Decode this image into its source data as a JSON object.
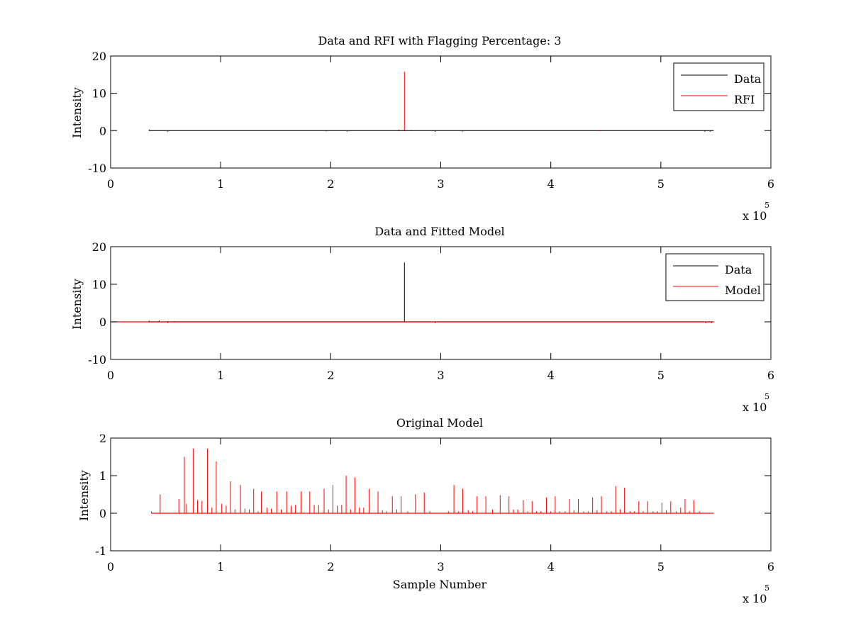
{
  "chart_data": [
    {
      "type": "line",
      "title": "Data and RFI with Flagging Percentage: 3",
      "xlabel": "",
      "ylabel": "Intensity",
      "xlim": [
        0,
        600000
      ],
      "ylim": [
        -10,
        20
      ],
      "x_ticks": [
        0,
        100000,
        200000,
        300000,
        400000,
        500000,
        600000
      ],
      "x_tick_labels": [
        "0",
        "1",
        "2",
        "3",
        "4",
        "5",
        "6"
      ],
      "y_ticks": [
        -10,
        0,
        10,
        20
      ],
      "y_tick_labels": [
        "-10",
        "0",
        "10",
        "20"
      ],
      "x_multiplier_label": "x 10",
      "x_multiplier_exponent": "5",
      "grid": false,
      "legend_position": "top-right",
      "series": [
        {
          "name": "Data",
          "color": "#000000",
          "x_range": [
            35000,
            548000
          ],
          "baseline": 0,
          "features": [
            {
              "x": 35000,
              "y": 0.3
            },
            {
              "x": 52000,
              "y": -0.3
            },
            {
              "x": 196000,
              "y": -0.2
            },
            {
              "x": 215000,
              "y": -0.25
            },
            {
              "x": 295000,
              "y": -0.3
            },
            {
              "x": 320000,
              "y": -0.25
            },
            {
              "x": 540000,
              "y": -0.3
            },
            {
              "x": 545000,
              "y": -0.3
            }
          ]
        },
        {
          "name": "RFI",
          "color": "#ff0000",
          "features": [
            {
              "x": 267000,
              "y": 15.8
            },
            {
              "x": 262000,
              "y": 0.25
            },
            {
              "x": 273000,
              "y": 0.2
            },
            {
              "x": 251000,
              "y": -0.15
            },
            {
              "x": 445000,
              "y": -0.15
            },
            {
              "x": 452000,
              "y": -0.15
            }
          ]
        }
      ]
    },
    {
      "type": "line",
      "title": "Data and Fitted Model",
      "xlabel": "",
      "ylabel": "Intensity",
      "xlim": [
        0,
        600000
      ],
      "ylim": [
        -10,
        20
      ],
      "x_ticks": [
        0,
        100000,
        200000,
        300000,
        400000,
        500000,
        600000
      ],
      "x_tick_labels": [
        "0",
        "1",
        "2",
        "3",
        "4",
        "5",
        "6"
      ],
      "y_ticks": [
        -10,
        0,
        10,
        20
      ],
      "y_tick_labels": [
        "-10",
        "0",
        "10",
        "20"
      ],
      "x_multiplier_label": "x 10",
      "x_multiplier_exponent": "5",
      "grid": false,
      "legend_position": "top-right",
      "series": [
        {
          "name": "Data",
          "color": "#000000",
          "x_range": [
            35000,
            548000
          ],
          "baseline": 0,
          "features": [
            {
              "x": 35000,
              "y": 0.3
            },
            {
              "x": 44000,
              "y": 0.4
            },
            {
              "x": 52000,
              "y": -0.3
            },
            {
              "x": 58000,
              "y": 0.2
            },
            {
              "x": 267000,
              "y": 15.8
            },
            {
              "x": 295000,
              "y": -0.3
            },
            {
              "x": 541000,
              "y": -0.35
            },
            {
              "x": 546000,
              "y": -0.3
            }
          ]
        },
        {
          "name": "Model",
          "color": "#ff0000",
          "x_range": [
            0,
            548000
          ],
          "baseline": 0,
          "features": []
        }
      ]
    },
    {
      "type": "line",
      "title": "Original Model",
      "xlabel": "Sample Number",
      "ylabel": "Intensity",
      "xlim": [
        0,
        600000
      ],
      "ylim": [
        -1,
        2
      ],
      "x_ticks": [
        0,
        100000,
        200000,
        300000,
        400000,
        500000,
        600000
      ],
      "x_tick_labels": [
        "0",
        "1",
        "2",
        "3",
        "4",
        "5",
        "6"
      ],
      "y_ticks": [
        -1,
        0,
        1,
        2
      ],
      "y_tick_labels": [
        "-1",
        "0",
        "1",
        "2"
      ],
      "x_multiplier_label": "x 10",
      "x_multiplier_exponent": "5",
      "grid": false,
      "legend_position": "none",
      "series": [
        {
          "color": "#ff0000",
          "x_range": [
            37000,
            548000
          ],
          "baseline": 0,
          "features": [
            {
              "x": 37000,
              "y": 0.05
            },
            {
              "x": 45000,
              "y": 0.5
            },
            {
              "x": 62000,
              "y": 0.38
            },
            {
              "x": 67000,
              "y": 1.5
            },
            {
              "x": 69000,
              "y": 0.25
            },
            {
              "x": 75000,
              "y": 1.72
            },
            {
              "x": 79000,
              "y": 0.35
            },
            {
              "x": 83000,
              "y": 0.33
            },
            {
              "x": 88000,
              "y": 1.72
            },
            {
              "x": 92000,
              "y": 0.15
            },
            {
              "x": 96000,
              "y": 1.38
            },
            {
              "x": 101000,
              "y": 0.25
            },
            {
              "x": 105000,
              "y": 0.2
            },
            {
              "x": 109000,
              "y": 0.85
            },
            {
              "x": 113000,
              "y": 0.1
            },
            {
              "x": 118000,
              "y": 0.75
            },
            {
              "x": 122000,
              "y": 0.12
            },
            {
              "x": 126000,
              "y": 0.1
            },
            {
              "x": 130000,
              "y": 0.65
            },
            {
              "x": 134000,
              "y": 0.05
            },
            {
              "x": 137000,
              "y": 0.58
            },
            {
              "x": 142000,
              "y": 0.15
            },
            {
              "x": 146000,
              "y": 0.12
            },
            {
              "x": 151000,
              "y": 0.58
            },
            {
              "x": 155000,
              "y": 0.1
            },
            {
              "x": 160000,
              "y": 0.58
            },
            {
              "x": 164000,
              "y": 0.2
            },
            {
              "x": 168000,
              "y": 0.22
            },
            {
              "x": 173000,
              "y": 0.58
            },
            {
              "x": 181000,
              "y": 0.58
            },
            {
              "x": 185000,
              "y": 0.22
            },
            {
              "x": 189000,
              "y": 0.22
            },
            {
              "x": 194000,
              "y": 0.65
            },
            {
              "x": 198000,
              "y": 0.1
            },
            {
              "x": 202000,
              "y": 0.75
            },
            {
              "x": 206000,
              "y": 0.2
            },
            {
              "x": 210000,
              "y": 0.22
            },
            {
              "x": 214000,
              "y": 1.0
            },
            {
              "x": 218000,
              "y": 0.1
            },
            {
              "x": 222000,
              "y": 0.95
            },
            {
              "x": 226000,
              "y": 0.15
            },
            {
              "x": 230000,
              "y": 0.15
            },
            {
              "x": 235000,
              "y": 0.65
            },
            {
              "x": 243000,
              "y": 0.58
            },
            {
              "x": 247000,
              "y": 0.08
            },
            {
              "x": 251000,
              "y": 0.05
            },
            {
              "x": 256000,
              "y": 0.45
            },
            {
              "x": 260000,
              "y": 0.1
            },
            {
              "x": 264000,
              "y": 0.45
            },
            {
              "x": 270000,
              "y": 0.05
            },
            {
              "x": 277000,
              "y": 0.5
            },
            {
              "x": 285000,
              "y": 0.55
            },
            {
              "x": 290000,
              "y": 0.05
            },
            {
              "x": 307000,
              "y": 0.05
            },
            {
              "x": 312000,
              "y": 0.75
            },
            {
              "x": 316000,
              "y": 0.05
            },
            {
              "x": 320000,
              "y": 0.65
            },
            {
              "x": 325000,
              "y": 0.08
            },
            {
              "x": 329000,
              "y": 0.05
            },
            {
              "x": 333000,
              "y": 0.45
            },
            {
              "x": 341000,
              "y": 0.45
            },
            {
              "x": 347000,
              "y": 0.1
            },
            {
              "x": 354000,
              "y": 0.48
            },
            {
              "x": 362000,
              "y": 0.45
            },
            {
              "x": 366000,
              "y": 0.1
            },
            {
              "x": 370000,
              "y": 0.1
            },
            {
              "x": 375000,
              "y": 0.35
            },
            {
              "x": 379000,
              "y": 0.05
            },
            {
              "x": 383000,
              "y": 0.32
            },
            {
              "x": 387000,
              "y": 0.05
            },
            {
              "x": 391000,
              "y": 0.05
            },
            {
              "x": 396000,
              "y": 0.42
            },
            {
              "x": 400000,
              "y": 0.05
            },
            {
              "x": 404000,
              "y": 0.45
            },
            {
              "x": 408000,
              "y": 0.05
            },
            {
              "x": 413000,
              "y": 0.05
            },
            {
              "x": 417000,
              "y": 0.38
            },
            {
              "x": 421000,
              "y": 0.08
            },
            {
              "x": 425000,
              "y": 0.38
            },
            {
              "x": 430000,
              "y": 0.05
            },
            {
              "x": 434000,
              "y": 0.05
            },
            {
              "x": 438000,
              "y": 0.42
            },
            {
              "x": 442000,
              "y": 0.08
            },
            {
              "x": 446000,
              "y": 0.45
            },
            {
              "x": 451000,
              "y": 0.05
            },
            {
              "x": 455000,
              "y": 0.05
            },
            {
              "x": 459000,
              "y": 0.72
            },
            {
              "x": 463000,
              "y": 0.1
            },
            {
              "x": 467000,
              "y": 0.68
            },
            {
              "x": 472000,
              "y": 0.05
            },
            {
              "x": 476000,
              "y": 0.05
            },
            {
              "x": 480000,
              "y": 0.32
            },
            {
              "x": 484000,
              "y": 0.05
            },
            {
              "x": 488000,
              "y": 0.32
            },
            {
              "x": 493000,
              "y": 0.05
            },
            {
              "x": 497000,
              "y": 0.05
            },
            {
              "x": 501000,
              "y": 0.28
            },
            {
              "x": 505000,
              "y": 0.08
            },
            {
              "x": 509000,
              "y": 0.32
            },
            {
              "x": 514000,
              "y": 0.05
            },
            {
              "x": 518000,
              "y": 0.15
            },
            {
              "x": 522000,
              "y": 0.38
            },
            {
              "x": 526000,
              "y": 0.05
            },
            {
              "x": 530000,
              "y": 0.35
            },
            {
              "x": 535000,
              "y": 0.05
            }
          ]
        }
      ]
    }
  ]
}
